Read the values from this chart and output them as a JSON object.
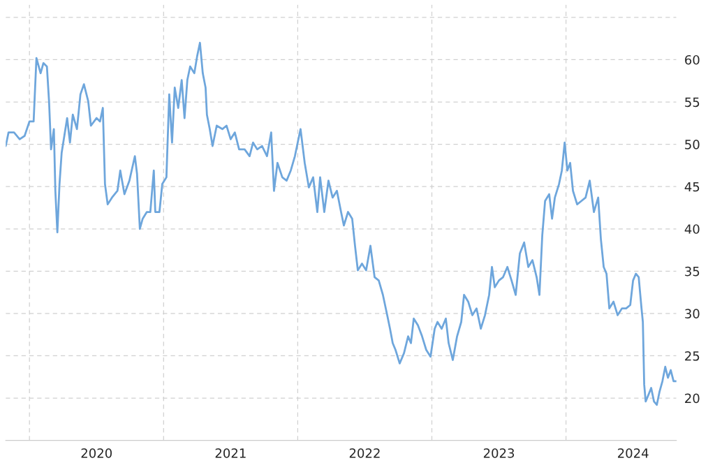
{
  "chart_data": {
    "type": "line",
    "x": [
      2019.823,
      2019.844,
      2019.885,
      2019.927,
      2019.964,
      2020.0,
      2020.031,
      2020.052,
      2020.083,
      2020.104,
      2020.13,
      2020.146,
      2020.161,
      2020.182,
      2020.193,
      2020.208,
      2020.224,
      2020.24,
      2020.26,
      2020.281,
      2020.302,
      2020.323,
      2020.354,
      2020.38,
      2020.406,
      2020.438,
      2020.458,
      2020.5,
      2020.526,
      2020.547,
      2020.563,
      2020.583,
      2020.615,
      2020.656,
      2020.677,
      2020.708,
      2020.745,
      2020.786,
      2020.802,
      2020.823,
      2020.844,
      2020.875,
      2020.901,
      2020.927,
      2020.938,
      2020.969,
      2020.99,
      2021.021,
      2021.042,
      2021.063,
      2021.083,
      2021.109,
      2021.135,
      2021.156,
      2021.177,
      2021.198,
      2021.229,
      2021.25,
      2021.271,
      2021.292,
      2021.313,
      2021.323,
      2021.344,
      2021.365,
      2021.396,
      2021.438,
      2021.469,
      2021.5,
      2021.531,
      2021.563,
      2021.604,
      2021.641,
      2021.667,
      2021.698,
      2021.734,
      2021.771,
      2021.802,
      2021.823,
      2021.849,
      2021.885,
      2021.917,
      2021.948,
      2021.979,
      2022.021,
      2022.052,
      2022.083,
      2022.115,
      2022.146,
      2022.167,
      2022.198,
      2022.229,
      2022.26,
      2022.292,
      2022.323,
      2022.344,
      2022.375,
      2022.406,
      2022.427,
      2022.448,
      2022.479,
      2022.51,
      2022.542,
      2022.573,
      2022.604,
      2022.635,
      2022.667,
      2022.688,
      2022.708,
      2022.729,
      2022.76,
      2022.792,
      2022.823,
      2022.844,
      2022.865,
      2022.896,
      2022.927,
      2022.958,
      2022.99,
      2023.021,
      2023.042,
      2023.073,
      2023.104,
      2023.125,
      2023.156,
      2023.188,
      2023.219,
      2023.24,
      2023.271,
      2023.302,
      2023.333,
      2023.365,
      2023.396,
      2023.427,
      2023.448,
      2023.469,
      2023.5,
      2023.531,
      2023.563,
      2023.594,
      2023.625,
      2023.656,
      2023.688,
      2023.719,
      2023.75,
      2023.781,
      2023.802,
      2023.823,
      2023.844,
      2023.875,
      2023.896,
      2023.917,
      2023.948,
      2023.969,
      2023.99,
      2024.01,
      2024.031,
      2024.052,
      2024.083,
      2024.115,
      2024.146,
      2024.177,
      2024.208,
      2024.24,
      2024.26,
      2024.281,
      2024.302,
      2024.323,
      2024.354,
      2024.385,
      2024.417,
      2024.448,
      2024.479,
      2024.5,
      2024.521,
      2024.542,
      2024.563,
      2024.573,
      2024.583,
      2024.594,
      2024.615,
      2024.635,
      2024.656,
      2024.677,
      2024.698,
      2024.719,
      2024.74,
      2024.76,
      2024.781,
      2024.802,
      2024.823
    ],
    "series": [
      {
        "color": "#6ea6dc",
        "values": [
          49.8,
          51.4,
          51.4,
          50.6,
          51.0,
          52.7,
          52.7,
          60.2,
          58.4,
          59.6,
          59.2,
          55.1,
          49.4,
          51.8,
          44.5,
          39.6,
          45.3,
          49.0,
          51.0,
          53.1,
          50.2,
          53.5,
          51.8,
          55.9,
          57.1,
          55.1,
          52.2,
          53.1,
          52.7,
          54.3,
          45.3,
          42.9,
          43.7,
          44.5,
          46.9,
          44.1,
          45.7,
          48.6,
          46.5,
          40.0,
          41.2,
          42.0,
          42.0,
          46.9,
          42.0,
          42.0,
          45.3,
          46.1,
          55.9,
          50.2,
          56.7,
          54.3,
          57.6,
          53.1,
          57.6,
          59.2,
          58.4,
          60.4,
          62.0,
          58.4,
          56.7,
          53.5,
          51.8,
          49.8,
          52.2,
          51.8,
          52.2,
          50.6,
          51.4,
          49.4,
          49.4,
          48.6,
          50.2,
          49.4,
          49.8,
          48.6,
          51.4,
          44.5,
          47.8,
          46.1,
          45.7,
          46.9,
          48.6,
          51.8,
          47.8,
          44.9,
          46.1,
          42.0,
          46.1,
          42.0,
          45.7,
          43.7,
          44.5,
          42.0,
          40.4,
          42.0,
          41.2,
          38.0,
          35.1,
          35.9,
          35.1,
          38.0,
          34.3,
          33.9,
          32.2,
          29.8,
          28.2,
          26.5,
          25.7,
          24.1,
          25.3,
          27.3,
          26.5,
          29.4,
          28.6,
          27.3,
          25.7,
          24.9,
          28.2,
          29.0,
          28.2,
          29.4,
          26.5,
          24.5,
          27.3,
          29.0,
          32.2,
          31.4,
          29.8,
          30.6,
          28.2,
          29.8,
          32.2,
          35.5,
          33.1,
          33.9,
          34.3,
          35.5,
          33.9,
          32.2,
          37.1,
          38.4,
          35.5,
          36.3,
          34.3,
          32.2,
          39.2,
          43.3,
          44.1,
          41.2,
          43.7,
          45.3,
          46.9,
          50.2,
          46.9,
          47.8,
          44.5,
          42.9,
          43.3,
          43.7,
          45.7,
          42.0,
          43.7,
          38.8,
          35.5,
          34.7,
          30.6,
          31.4,
          29.8,
          30.6,
          30.6,
          31.0,
          33.9,
          34.7,
          34.3,
          30.6,
          29.0,
          21.6,
          19.6,
          20.4,
          21.2,
          19.6,
          19.2,
          20.8,
          22.0,
          23.7,
          22.4,
          23.3,
          22.0,
          22.0
        ]
      }
    ],
    "xlim": [
      2019.823,
      2024.823
    ],
    "xticks": [
      {
        "value": 2020,
        "label": null
      },
      {
        "value": 2020.5,
        "label": "2020"
      },
      {
        "value": 2021,
        "label": null
      },
      {
        "value": 2021.5,
        "label": "2021"
      },
      {
        "value": 2022,
        "label": null
      },
      {
        "value": 2022.5,
        "label": "2022"
      },
      {
        "value": 2023,
        "label": null
      },
      {
        "value": 2023.5,
        "label": "2023"
      },
      {
        "value": 2024,
        "label": null
      },
      {
        "value": 2024.5,
        "label": "2024"
      }
    ],
    "ylim": [
      15,
      66.5
    ],
    "yticks": [
      {
        "value": 15,
        "label": null
      },
      20,
      25,
      30,
      35,
      40,
      45,
      50,
      55,
      60,
      {
        "value": 65,
        "label": null
      }
    ],
    "grid": true,
    "line_style": "solid"
  }
}
